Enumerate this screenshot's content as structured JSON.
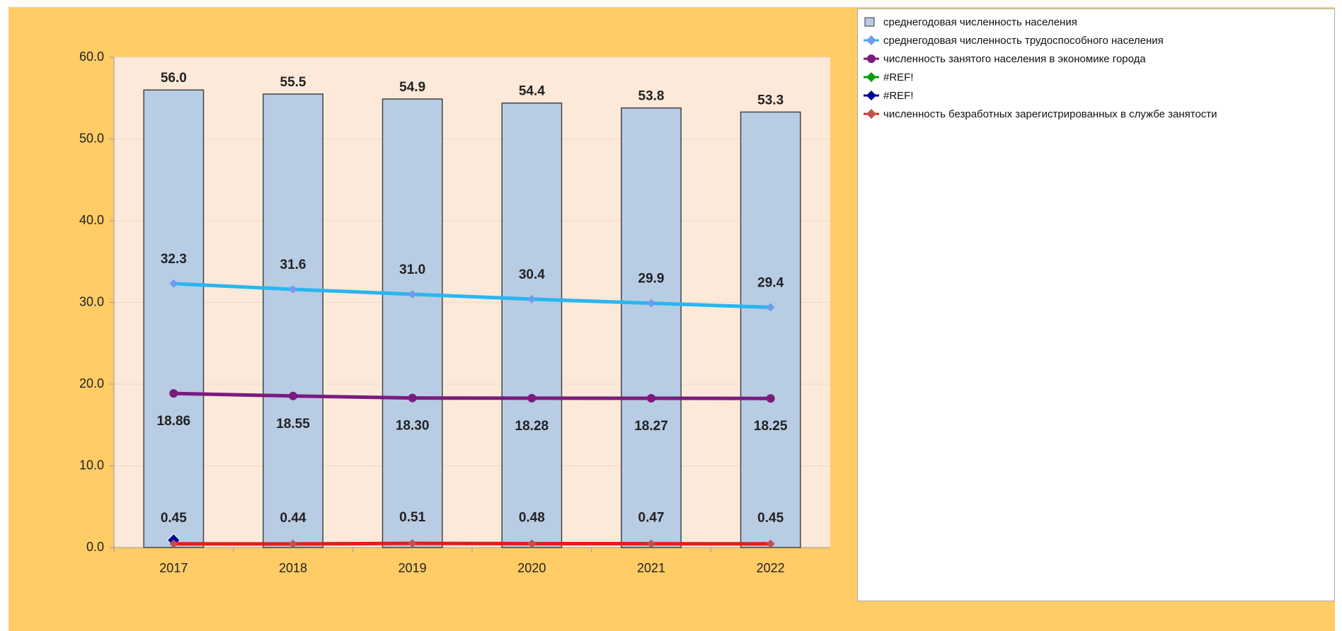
{
  "chart_data": {
    "type": "bar",
    "categories": [
      "2017",
      "2018",
      "2019",
      "2020",
      "2021",
      "2022"
    ],
    "ylim": [
      0,
      60
    ],
    "yticks": [
      {
        "value": 0,
        "label": "0.0"
      },
      {
        "value": 10,
        "label": "10.0"
      },
      {
        "value": 20,
        "label": "20.0"
      },
      {
        "value": 30,
        "label": "30.0"
      },
      {
        "value": 40,
        "label": "40.0"
      },
      {
        "value": 50,
        "label": "50.0"
      },
      {
        "value": 60,
        "label": "60.0"
      }
    ],
    "grid": true,
    "legend": "right",
    "series": [
      {
        "name": "среднегодовая численность населения",
        "type": "bar",
        "color": "#b8cce4",
        "values": [
          56.0,
          55.5,
          54.9,
          54.4,
          53.8,
          53.3
        ],
        "value_labels": [
          "56.0",
          "55.5",
          "54.9",
          "54.4",
          "53.8",
          "53.3"
        ]
      },
      {
        "name": "среднегодовая численность трудоспособного населения",
        "type": "line",
        "color": "#29b6f0",
        "marker_color": "#6f9cf0",
        "values": [
          32.3,
          31.6,
          31.0,
          30.4,
          29.9,
          29.4
        ],
        "value_labels": [
          "32.3",
          "31.6",
          "31.0",
          "30.4",
          "29.9",
          "29.4"
        ]
      },
      {
        "name": "численность занятого населения в экономике города",
        "type": "line",
        "color": "#7b1b7e",
        "marker_color": "#7b1b7e",
        "values": [
          18.86,
          18.55,
          18.3,
          18.28,
          18.27,
          18.25
        ],
        "value_labels": [
          "18.86",
          "18.55",
          "18.30",
          "18.28",
          "18.27",
          "18.25"
        ]
      },
      {
        "name": "#REF!",
        "type": "line",
        "color": "#00a000",
        "marker_color": "#00a000",
        "values": [
          null,
          null,
          null,
          null,
          null,
          null
        ]
      },
      {
        "name": "#REF!",
        "type": "line",
        "color": "#000099",
        "marker_color": "#000099",
        "values": [
          0.9,
          null,
          null,
          null,
          null,
          null
        ]
      },
      {
        "name": "численность безработных зарегистрированных в службе занятости",
        "type": "line",
        "color": "#e0201b",
        "marker_color": "#c0504d",
        "values": [
          0.45,
          0.44,
          0.51,
          0.48,
          0.47,
          0.45
        ],
        "value_labels": [
          "0.45",
          "0.44",
          "0.51",
          "0.48",
          "0.47",
          "0.45"
        ]
      }
    ]
  }
}
